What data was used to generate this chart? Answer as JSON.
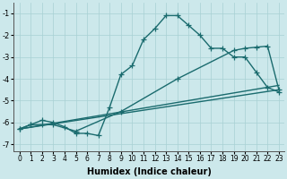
{
  "xlabel": "Humidex (Indice chaleur)",
  "background_color": "#cce8eb",
  "grid_color": "#a8d0d4",
  "line_color": "#1a6b6e",
  "xlim": [
    -0.5,
    23.5
  ],
  "ylim": [
    -7.3,
    -0.5
  ],
  "yticks": [
    -7,
    -6,
    -5,
    -4,
    -3,
    -2,
    -1
  ],
  "xticks": [
    0,
    1,
    2,
    3,
    4,
    5,
    6,
    7,
    8,
    9,
    10,
    11,
    12,
    13,
    14,
    15,
    16,
    17,
    18,
    19,
    20,
    21,
    22,
    23
  ],
  "line1_x": [
    0,
    1,
    2,
    3,
    4,
    5,
    6,
    7,
    8,
    9,
    10,
    11,
    12,
    13,
    14,
    15,
    16,
    17,
    18,
    19,
    20,
    21,
    22,
    23
  ],
  "line1_y": [
    -6.3,
    -6.1,
    -5.9,
    -6.0,
    -6.2,
    -6.5,
    -6.5,
    -6.6,
    -5.3,
    -3.8,
    -3.4,
    -2.2,
    -1.7,
    -1.1,
    -1.1,
    -1.55,
    -2.0,
    -2.6,
    -2.6,
    -3.0,
    -3.0,
    -3.7,
    -4.4,
    -4.6
  ],
  "line2_x": [
    0,
    1,
    2,
    3,
    5,
    9,
    14,
    19,
    20,
    21,
    22,
    23
  ],
  "line2_y": [
    -6.3,
    -6.1,
    -6.1,
    -6.1,
    -6.4,
    -5.5,
    -4.0,
    -2.7,
    -2.6,
    -2.55,
    -2.5,
    -4.5
  ],
  "line3_x": [
    0,
    23
  ],
  "line3_y": [
    -6.3,
    -4.5
  ],
  "line4_x": [
    0,
    23
  ],
  "line4_y": [
    -6.3,
    -4.3
  ],
  "marker": "+",
  "markersize": 4,
  "linewidth": 1.0
}
